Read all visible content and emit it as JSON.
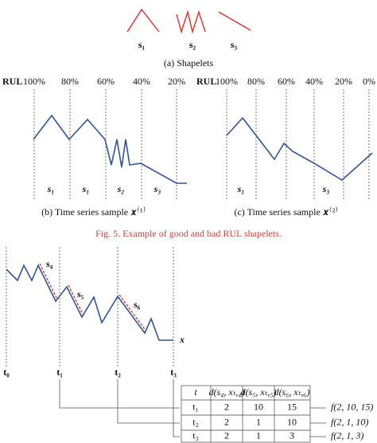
{
  "panel_a": {
    "shapelet_labels": [
      "s₁",
      "s₂",
      "s₃"
    ],
    "caption": "(a) Shapelets"
  },
  "panel_b": {
    "rul_label": "RUL",
    "percents": [
      "100%",
      "80%",
      "60%",
      "40%",
      "20%"
    ],
    "segment_labels": [
      "s₁",
      "s₁",
      "s₂",
      "s₃"
    ],
    "caption": "(b) Time series sample 𝒙⁽¹⁾"
  },
  "panel_c": {
    "rul_label": "RUL",
    "percents": [
      "100%",
      "80%",
      "60%",
      "40%",
      "20%",
      "0%"
    ],
    "segment_labels": [
      "s₁",
      "s₃"
    ],
    "caption": "(c) Time series sample 𝒙⁽²⁾"
  },
  "figure_caption": "Fig. 5. Example of good and bad RUL shapelets.",
  "bottom": {
    "shapelet_labels": [
      "s₄",
      "s₅",
      "s₆"
    ],
    "series_label": "x",
    "time_labels": [
      "t₀",
      "t₁",
      "t₂",
      "t₃"
    ],
    "table": {
      "header": [
        "t",
        "d(s₄, xₜ,₄)",
        "d(s₅, xₜ,₅)",
        "d(s₆, xₜ,₆)"
      ],
      "rows": [
        [
          "t₁",
          "2",
          "10",
          "15"
        ],
        [
          "t₂",
          "2",
          "1",
          "10"
        ],
        [
          "t₃",
          "2",
          "1",
          "3"
        ]
      ]
    },
    "outputs": [
      "f(2, 10, 15)",
      "f(2, 1, 10)",
      "f(2, 1, 3)"
    ]
  }
}
